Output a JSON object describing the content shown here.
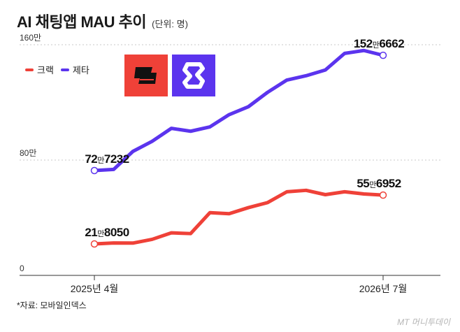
{
  "header": {
    "title": "AI 채팅앱 MAU 추이",
    "unit": "(단위: 명)"
  },
  "legend": {
    "items": [
      {
        "label": "크랙",
        "color": "#ef4138"
      },
      {
        "label": "제타",
        "color": "#5b34ee"
      }
    ]
  },
  "logos": [
    {
      "name": "crack-logo",
      "bg": "#ef4138"
    },
    {
      "name": "zeta-logo",
      "bg": "#5b34ee"
    }
  ],
  "footer": {
    "source": "*자료: 모바일인덱스",
    "watermark": "MT 머니투데이"
  },
  "chart_data": {
    "type": "line",
    "x": [
      "2025-04",
      "2025-05",
      "2025-06",
      "2025-07",
      "2025-08",
      "2025-09",
      "2025-10",
      "2025-11",
      "2025-12",
      "2026-01",
      "2026-02",
      "2026-03",
      "2026-04",
      "2026-05",
      "2026-06",
      "2026-07"
    ],
    "x_tick_labels": [
      {
        "x": "2025-04",
        "label": "2025년 4월"
      },
      {
        "x": "2026-07",
        "label": "2026년 7월"
      }
    ],
    "ylim": [
      0,
      1600000
    ],
    "y_tick_labels": [
      {
        "value": 0,
        "label": "0"
      },
      {
        "value": 800000,
        "label": "80만"
      },
      {
        "value": 1600000,
        "label": "160만"
      }
    ],
    "grid": true,
    "legend_position": "top-left",
    "series": [
      {
        "name": "제타",
        "color": "#5b34ee",
        "values": [
          727232,
          735000,
          860000,
          930000,
          1020000,
          1000000,
          1030000,
          1115000,
          1170000,
          1270000,
          1355000,
          1385000,
          1425000,
          1540000,
          1560000,
          1526662
        ],
        "start_label_main": "72",
        "start_label_unit": "만",
        "start_label_rest": "7232",
        "end_label_main": "152",
        "end_label_unit": "만",
        "end_label_rest": "6662"
      },
      {
        "name": "크랙",
        "color": "#ef4138",
        "values": [
          218050,
          225000,
          224000,
          250000,
          295000,
          290000,
          435000,
          428000,
          470000,
          505000,
          580000,
          590000,
          560000,
          580000,
          565000,
          556952
        ],
        "start_label_main": "21",
        "start_label_unit": "만",
        "start_label_rest": "8050",
        "end_label_main": "55",
        "end_label_unit": "만",
        "end_label_rest": "6952"
      }
    ]
  }
}
